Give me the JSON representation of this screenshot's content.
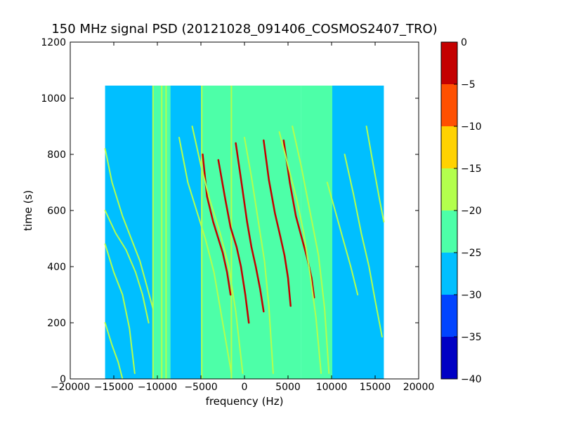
{
  "chart_data": {
    "type": "heatmap",
    "title": "150 MHz signal PSD (20121028_091406_COSMOS2407_TRO)",
    "xlabel": "frequency (Hz)",
    "ylabel": "time (s)",
    "xlim": [
      -20000,
      20000
    ],
    "ylim": [
      0,
      1200
    ],
    "xticks": [
      -20000,
      -15000,
      -10000,
      -5000,
      0,
      5000,
      10000,
      15000,
      20000
    ],
    "xtick_labels": [
      "−20000",
      "−15000",
      "−10000",
      "−5000",
      "0",
      "5000",
      "10000",
      "15000",
      "20000"
    ],
    "yticks": [
      0,
      200,
      400,
      600,
      800,
      1000,
      1200
    ],
    "ytick_labels": [
      "0",
      "200",
      "400",
      "600",
      "800",
      "1000",
      "1200"
    ],
    "data_extent": {
      "x": [
        -16000,
        16000
      ],
      "y": [
        0,
        1045
      ]
    },
    "colorbar": {
      "levels": [
        -40,
        -35,
        -30,
        -25,
        -20,
        -15,
        -10,
        -5,
        0
      ],
      "labels": [
        "−40",
        "−35",
        "−30",
        "−25",
        "−20",
        "−15",
        "−10",
        "−5",
        "0"
      ],
      "colors": [
        "#0000c4",
        "#0044ff",
        "#00bfff",
        "#4dffa8",
        "#b3ff4d",
        "#ffd200",
        "#ff5000",
        "#c40000"
      ]
    },
    "regions": [
      {
        "x": [
          -16000,
          -10500
        ],
        "level": -27.5
      },
      {
        "x": [
          -10500,
          -8500
        ],
        "level": -22.5
      },
      {
        "x": [
          -8500,
          -5000
        ],
        "level": -27.5
      },
      {
        "x": [
          -5000,
          6500
        ],
        "level": -22.5
      },
      {
        "x": [
          6500,
          10000
        ],
        "level": -22.5
      },
      {
        "x": [
          10000,
          16000
        ],
        "level": -27.5
      }
    ],
    "vertical_lines": [
      {
        "x": -10500,
        "level": -17.5
      },
      {
        "x": -9500,
        "level": -17.5
      },
      {
        "x": -9000,
        "level": -17.5
      },
      {
        "x": -4900,
        "level": -17.5
      },
      {
        "x": -1500,
        "level": -17.5
      },
      {
        "x": 10000,
        "level": -22.5
      }
    ],
    "traces": [
      {
        "x": [
          -4800,
          -4300,
          -3600,
          -3000,
          -2500,
          -2000,
          -1600
        ],
        "y": [
          800,
          650,
          560,
          500,
          450,
          380,
          300
        ],
        "level": -2.5
      },
      {
        "x": [
          -3000,
          -2200,
          -1600,
          -900,
          -400,
          100,
          500
        ],
        "y": [
          780,
          640,
          540,
          470,
          400,
          300,
          200
        ],
        "level": -2.5
      },
      {
        "x": [
          -1000,
          -300,
          300,
          800,
          1300,
          1800,
          2200
        ],
        "y": [
          840,
          690,
          560,
          470,
          400,
          320,
          240
        ],
        "level": -2.5
      },
      {
        "x": [
          2200,
          2800,
          3500,
          4100,
          4600,
          5000,
          5300
        ],
        "y": [
          850,
          710,
          590,
          510,
          440,
          360,
          260
        ],
        "level": -2.5
      },
      {
        "x": [
          4500,
          5200,
          5900,
          6600,
          7200,
          7700,
          8000
        ],
        "y": [
          850,
          700,
          580,
          500,
          430,
          360,
          290
        ],
        "level": -2.5
      },
      {
        "x": [
          -7500,
          -6500,
          -5500,
          -4500,
          -3500,
          -2500,
          -1500
        ],
        "y": [
          860,
          700,
          600,
          500,
          380,
          200,
          20
        ],
        "level": -17.5
      },
      {
        "x": [
          -6000,
          -5000,
          -4000,
          -2800,
          -1800,
          -1000,
          -200
        ],
        "y": [
          900,
          760,
          640,
          520,
          400,
          240,
          20
        ],
        "level": -17.5
      },
      {
        "x": [
          0,
          800,
          1600,
          2300,
          2800,
          3300
        ],
        "y": [
          860,
          720,
          560,
          420,
          260,
          20
        ],
        "level": -17.5
      },
      {
        "x": [
          4000,
          5000,
          6000,
          6800,
          7500,
          8200,
          8800
        ],
        "y": [
          880,
          760,
          640,
          520,
          380,
          220,
          20
        ],
        "level": -17.5
      },
      {
        "x": [
          5500,
          6500,
          7500,
          8500,
          9200,
          9700
        ],
        "y": [
          900,
          760,
          600,
          440,
          250,
          20
        ],
        "level": -17.5
      },
      {
        "x": [
          9500,
          10400,
          11300,
          12200,
          13000
        ],
        "y": [
          700,
          600,
          500,
          400,
          300
        ],
        "level": -17.5
      },
      {
        "x": [
          11500,
          12500,
          13400,
          14300,
          15000,
          15800
        ],
        "y": [
          800,
          660,
          520,
          400,
          280,
          150
        ],
        "level": -17.5
      },
      {
        "x": [
          14000,
          14800,
          15500,
          16000
        ],
        "y": [
          900,
          760,
          640,
          560
        ],
        "level": -17.5
      },
      {
        "x": [
          -16000,
          -15200,
          -14000,
          -13000,
          -12000,
          -11200,
          -10500
        ],
        "y": [
          820,
          700,
          580,
          500,
          420,
          330,
          250
        ],
        "level": -17.5
      },
      {
        "x": [
          -16000,
          -14800,
          -13600,
          -12500,
          -11700,
          -11000
        ],
        "y": [
          600,
          520,
          460,
          380,
          300,
          200
        ],
        "level": -17.5
      },
      {
        "x": [
          -16000,
          -15000,
          -14000,
          -13200,
          -12600
        ],
        "y": [
          480,
          380,
          300,
          180,
          20
        ],
        "level": -17.5
      },
      {
        "x": [
          -16000,
          -15200,
          -14500,
          -14000
        ],
        "y": [
          200,
          120,
          60,
          0
        ],
        "level": -17.5
      }
    ]
  }
}
